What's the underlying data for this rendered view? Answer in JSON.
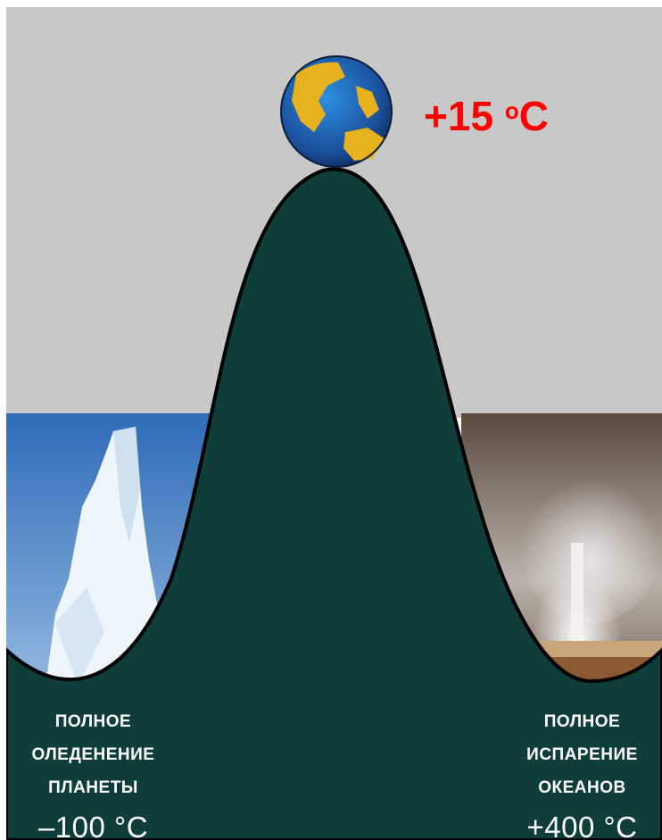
{
  "top": {
    "temperature": "+15",
    "degree_mark": "o",
    "unit": "C",
    "icon": "earth-globe-icon"
  },
  "left": {
    "lines": [
      "ПОЛНОЕ",
      "ОЛЕДЕНЕНИЕ",
      "ПЛАНЕТЫ"
    ],
    "temperature": "–100 °C",
    "scene": "iceberg"
  },
  "right": {
    "lines": [
      "ПОЛНОЕ",
      "ИСПАРЕНИЕ",
      "ОКЕАНОВ"
    ],
    "temperature": "+400 °C",
    "scene": "geyser"
  },
  "colors": {
    "hill": "#0e3d3a",
    "sky_gray": "#c8c8c8",
    "accent_red": "#ff0000"
  }
}
